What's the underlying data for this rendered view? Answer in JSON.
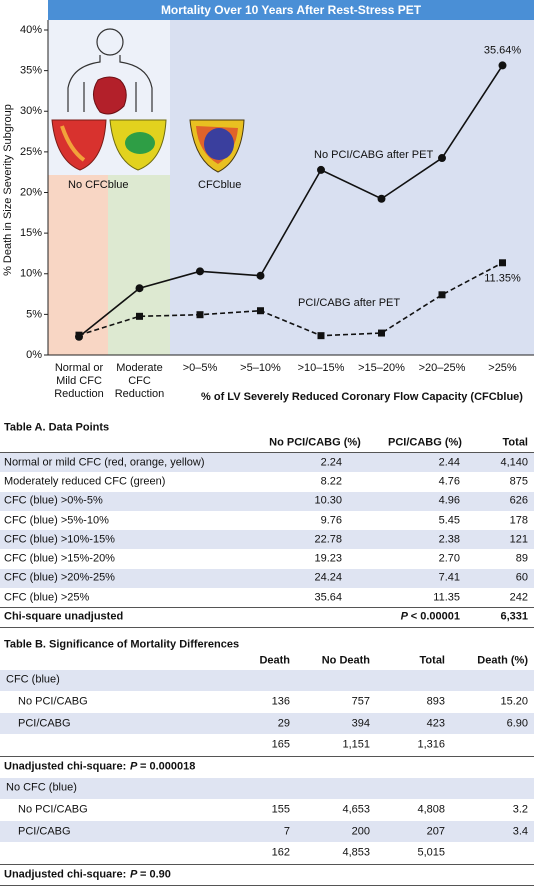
{
  "chart_data": {
    "type": "line",
    "title": "Mortality Over 10 Years After Rest-Stress PET",
    "y_label": "% Death in Size Severity Subgroup",
    "x_label": "% of LV Severely Reduced Coronary Flow Capacity (CFCblue)",
    "categories": [
      "Normal or Mild CFC Reduction",
      "Moderate CFC Reduction",
      ">0–5%",
      ">5–10%",
      ">10–15%",
      ">15–20%",
      ">20–25%",
      ">25%"
    ],
    "series": [
      {
        "name": "No PCI/CABG after PET",
        "color": "#111111",
        "marker": "circle",
        "line_style": "solid",
        "values": [
          2.24,
          8.22,
          10.3,
          9.76,
          22.78,
          19.23,
          24.24,
          35.64
        ],
        "value_labels": [
          null,
          null,
          null,
          null,
          null,
          null,
          null,
          "35.64%"
        ]
      },
      {
        "name": "PCI/CABG after PET",
        "color": "#111111",
        "marker": "square",
        "line_style": "dashed",
        "values": [
          2.44,
          4.76,
          4.96,
          5.45,
          2.38,
          2.7,
          7.41,
          11.35
        ],
        "value_labels": [
          null,
          null,
          null,
          null,
          null,
          null,
          null,
          "11.35%"
        ]
      }
    ],
    "annotations": [
      "No CFCblue",
      "CFCblue"
    ],
    "ylim": [
      0,
      40
    ],
    "yticks": [
      {
        "value": 0,
        "label": "0%"
      },
      {
        "value": 5,
        "label": "5%"
      },
      {
        "value": 10,
        "label": "10%"
      },
      {
        "value": 15,
        "label": "15%"
      },
      {
        "value": 20,
        "label": "20%"
      },
      {
        "value": 25,
        "label": "25%"
      },
      {
        "value": 30,
        "label": "30%"
      },
      {
        "value": 35,
        "label": "35%"
      },
      {
        "value": 40,
        "label": "40%"
      }
    ],
    "grid": false
  },
  "table_a": {
    "title": "Table A. Data Points",
    "columns": [
      "No PCI/CABG (%)",
      "PCI/CABG (%)",
      "Total"
    ],
    "rows": [
      [
        "Normal or mild CFC (red, orange, yellow)",
        "2.24",
        "2.44",
        "4,140"
      ],
      [
        "Moderately reduced CFC (green)",
        "8.22",
        "4.76",
        "875"
      ],
      [
        "CFC (blue) >0%-5%",
        "10.30",
        "4.96",
        "626"
      ],
      [
        "CFC (blue) >5%-10%",
        "9.76",
        "5.45",
        "178"
      ],
      [
        "CFC (blue) >10%-15%",
        "22.78",
        "2.38",
        "121"
      ],
      [
        "CFC (blue) >15%-20%",
        "19.23",
        "2.70",
        "89"
      ],
      [
        "CFC (blue) >20%-25%",
        "24.24",
        "7.41",
        "60"
      ],
      [
        "CFC (blue) >25%",
        "35.64",
        "11.35",
        "242"
      ]
    ],
    "summary": {
      "label": "Chi-square unadjusted",
      "p_symbol": "P",
      "p_text": "< 0.00001",
      "total": "6,331"
    }
  },
  "table_b": {
    "title": "Table B. Significance of Mortality Differences",
    "columns": [
      "Death",
      "No Death",
      "Total",
      "Death (%)"
    ],
    "groups": [
      {
        "label": "CFC (blue)",
        "rows": [
          [
            "No PCI/CABG",
            "136",
            "757",
            "893",
            "15.20"
          ],
          [
            "PCI/CABG",
            "29",
            "394",
            "423",
            "6.90"
          ]
        ],
        "totals": [
          "165",
          "1,151",
          "1,316"
        ],
        "test": {
          "label": "Unadjusted chi-square:",
          "p_symbol": "P",
          "p_text": "= 0.000018"
        }
      },
      {
        "label": "No CFC (blue)",
        "rows": [
          [
            "No PCI/CABG",
            "155",
            "4,653",
            "4,808",
            "3.2"
          ],
          [
            "PCI/CABG",
            "7",
            "200",
            "207",
            "3.4"
          ]
        ],
        "totals": [
          "162",
          "4,853",
          "5,015"
        ],
        "test": {
          "label": "Unadjusted chi-square:",
          "p_symbol": "P",
          "p_text": "= 0.90"
        }
      }
    ]
  }
}
